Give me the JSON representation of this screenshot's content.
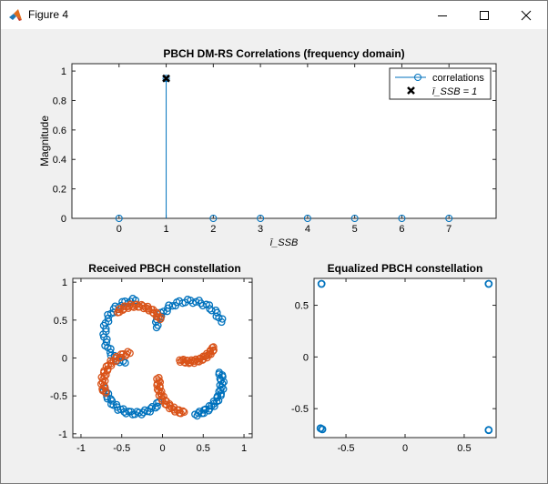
{
  "window": {
    "title": "Figure 4",
    "controls": [
      "minimize-icon",
      "maximize-icon",
      "close-icon"
    ]
  },
  "chart_data": [
    {
      "type": "stem",
      "title": "PBCH DM-RS Correlations (frequency domain)",
      "ylabel": "Magnitude",
      "xlabel": "ī_SSB",
      "xlim": [
        -1,
        8
      ],
      "ylim": [
        0,
        1.05
      ],
      "xticks": [
        "0",
        "1",
        "2",
        "3",
        "4",
        "5",
        "6",
        "7"
      ],
      "yticks": [
        "0",
        "0.2",
        "0.4",
        "0.6",
        "0.8",
        "1"
      ],
      "series": [
        {
          "name": "correlations",
          "color": "#0072bd",
          "x": [
            0,
            1,
            2,
            3,
            4,
            5,
            6,
            7
          ],
          "y": [
            0,
            0.95,
            0,
            0,
            0,
            0,
            0,
            0
          ]
        },
        {
          "name": "ī_SSB = 1",
          "color": "#000000",
          "marker": "x",
          "x": [
            1
          ],
          "y": [
            0.95
          ]
        }
      ],
      "legend": {
        "position": "top-right",
        "entries": [
          "correlations",
          "ī_SSB = 1"
        ]
      }
    },
    {
      "type": "scatter",
      "title": "Received PBCH constellation",
      "xlim": [
        -1.1,
        1.1
      ],
      "ylim": [
        -1.05,
        1.05
      ],
      "xticks": [
        "-1",
        "-0.5",
        "0",
        "0.5",
        "1"
      ],
      "yticks": [
        "-1",
        "-0.5",
        "0",
        "0.5",
        "1"
      ],
      "series": [
        {
          "color": "#0072bd",
          "arms": [
            {
              "cx": -0.33,
              "cy": 0.33,
              "rx": 0.38,
              "ry": 0.43,
              "a0": 90,
              "a1": 250
            },
            {
              "cx": 0.33,
              "cy": 0.33,
              "rx": 0.42,
              "ry": 0.42,
              "a0": 20,
              "a1": 170
            },
            {
              "cx": 0.33,
              "cy": -0.33,
              "rx": 0.4,
              "ry": 0.42,
              "a0": 280,
              "a1": 380
            },
            {
              "cx": -0.33,
              "cy": -0.33,
              "rx": 0.38,
              "ry": 0.4,
              "a0": 190,
              "a1": 320
            }
          ]
        },
        {
          "color": "#d95319",
          "arms": [
            {
              "cx": -0.33,
              "cy": 0.33,
              "rx": 0.35,
              "ry": 0.36,
              "a0": 30,
              "a1": 130
            },
            {
              "cx": 0.33,
              "cy": 0.33,
              "rx": 0.35,
              "ry": 0.38,
              "a0": 250,
              "a1": 330
            },
            {
              "cx": 0.33,
              "cy": -0.33,
              "rx": 0.38,
              "ry": 0.4,
              "a0": 170,
              "a1": 260
            },
            {
              "cx": -0.33,
              "cy": -0.33,
              "rx": 0.4,
              "ry": 0.4,
              "a0": 100,
              "a1": 200
            }
          ]
        }
      ]
    },
    {
      "type": "scatter",
      "title": "Equalized PBCH constellation",
      "xlim": [
        -0.77,
        0.77
      ],
      "ylim": [
        -0.78,
        0.76
      ],
      "xticks": [
        "-0.5",
        "0",
        "0.5"
      ],
      "yticks": [
        "-0.5",
        "0",
        "0.5"
      ],
      "series": [
        {
          "color": "#0072bd",
          "points": [
            [
              -0.707,
              0.707
            ],
            [
              0.707,
              0.707
            ],
            [
              -0.715,
              -0.69
            ],
            [
              -0.7,
              -0.7
            ],
            [
              0.707,
              -0.707
            ]
          ]
        }
      ]
    }
  ]
}
